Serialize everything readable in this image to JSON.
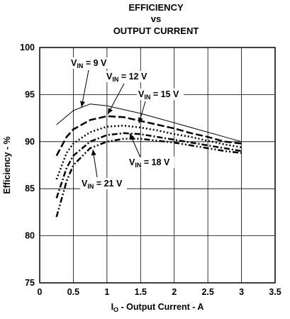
{
  "chart_data": {
    "type": "line",
    "title_lines": [
      "EFFICIENCY",
      "vs",
      "OUTPUT CURRENT"
    ],
    "xlabel": {
      "main": "I",
      "sub": "O",
      "rest": " - Output Current - A"
    },
    "ylabel": "Efficiency - %",
    "xlim": [
      0,
      3.5
    ],
    "ylim": [
      75,
      100
    ],
    "xticks": [
      "0",
      "0.5",
      "1",
      "1.5",
      "2",
      "2.5",
      "3",
      "3.5"
    ],
    "yticks": [
      "75",
      "80",
      "85",
      "90",
      "95",
      "100"
    ],
    "grid": true,
    "series": [
      {
        "name": "V_IN = 9 V",
        "label_main": "V",
        "label_sub": "IN",
        "label_rest": " = 9 V",
        "dash": "",
        "x": [
          0.25,
          0.5,
          0.75,
          1.0,
          1.25,
          1.5,
          1.75,
          2.0,
          2.25,
          2.5,
          2.75,
          3.0
        ],
        "y": [
          91.8,
          93.3,
          94.0,
          93.8,
          93.4,
          93.0,
          92.5,
          92.0,
          91.5,
          91.0,
          90.5,
          90.0
        ]
      },
      {
        "name": "V_IN = 12 V",
        "label_main": "V",
        "label_sub": "IN",
        "label_rest": " = 12 V",
        "dash": "10 4",
        "x": [
          0.25,
          0.4,
          0.5,
          0.75,
          1.0,
          1.25,
          1.5,
          1.75,
          2.0,
          2.25,
          2.5,
          2.75,
          3.0
        ],
        "y": [
          88.5,
          90.5,
          91.3,
          92.3,
          92.7,
          92.6,
          92.2,
          91.8,
          91.4,
          90.9,
          90.5,
          90.0,
          89.8
        ]
      },
      {
        "name": "V_IN = 15 V",
        "label_main": "V",
        "label_sub": "IN",
        "label_rest": " = 15 V",
        "dash": "2 3",
        "x": [
          0.25,
          0.4,
          0.5,
          0.75,
          1.0,
          1.25,
          1.5,
          1.75,
          2.0,
          2.25,
          2.5,
          2.75,
          3.0
        ],
        "y": [
          86.0,
          88.8,
          89.8,
          91.0,
          91.6,
          91.7,
          91.5,
          91.2,
          90.8,
          90.5,
          90.1,
          89.7,
          89.4
        ]
      },
      {
        "name": "V_IN = 18 V",
        "label_main": "V",
        "label_sub": "IN",
        "label_rest": " = 18 V",
        "dash": "8 3 2 3",
        "x": [
          0.25,
          0.4,
          0.5,
          0.75,
          1.0,
          1.25,
          1.5,
          1.75,
          2.0,
          2.25,
          2.5,
          2.75,
          3.0
        ],
        "y": [
          84.0,
          87.2,
          88.5,
          90.0,
          90.7,
          90.9,
          90.8,
          90.5,
          90.2,
          89.9,
          89.6,
          89.3,
          89.0
        ]
      },
      {
        "name": "V_IN = 21 V",
        "label_main": "V",
        "label_sub": "IN",
        "label_rest": " = 21 V",
        "dash": "8 3 2 3 2 3",
        "x": [
          0.25,
          0.4,
          0.5,
          0.75,
          1.0,
          1.25,
          1.5,
          1.75,
          2.0,
          2.25,
          2.5,
          2.75,
          3.0
        ],
        "y": [
          82.0,
          85.8,
          87.5,
          89.3,
          90.0,
          90.3,
          90.3,
          90.1,
          89.9,
          89.6,
          89.3,
          89.0,
          88.8
        ]
      }
    ]
  }
}
